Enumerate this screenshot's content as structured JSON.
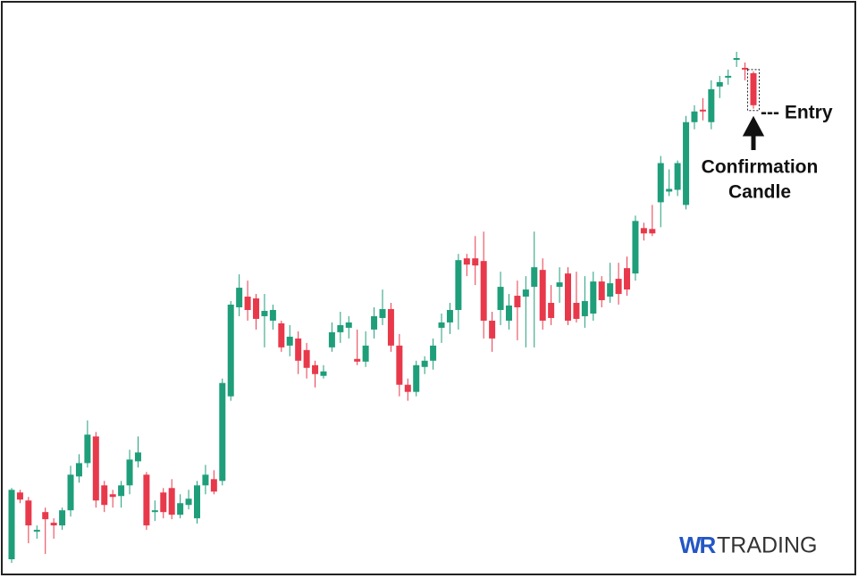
{
  "chart_data": {
    "type": "candlestick",
    "up_color": "#1f9e7a",
    "down_color": "#e8394b",
    "open": [
      22,
      97,
      88,
      53,
      75,
      63,
      60,
      77,
      115,
      130,
      160,
      105,
      95,
      93,
      105,
      132,
      117,
      75,
      97,
      102,
      72,
      83,
      68,
      105,
      112,
      110,
      205,
      305,
      317,
      315,
      295,
      290,
      287,
      262,
      270,
      257,
      240,
      228,
      260,
      277,
      282,
      247,
      244,
      280,
      293,
      303,
      262,
      218,
      210,
      238,
      245,
      282,
      288,
      302,
      360,
      360,
      357,
      290,
      302,
      290,
      318,
      317,
      328,
      347,
      310,
      328,
      343,
      310,
      295,
      298,
      334,
      317,
      337,
      349,
      343,
      394,
      393,
      423,
      435,
      437,
      420,
      513,
      527,
      513,
      553,
      563,
      583,
      574,
      568
    ],
    "high": [
      102,
      100,
      92,
      60,
      80,
      68,
      80,
      127,
      140,
      178,
      165,
      110,
      100,
      110,
      145,
      160,
      120,
      88,
      102,
      112,
      95,
      100,
      110,
      128,
      122,
      225,
      312,
      342,
      335,
      320,
      320,
      308,
      290,
      285,
      278,
      265,
      245,
      240,
      288,
      300,
      295,
      280,
      278,
      305,
      325,
      310,
      275,
      225,
      245,
      250,
      270,
      298,
      310,
      365,
      365,
      385,
      390,
      300,
      345,
      320,
      335,
      340,
      390,
      360,
      330,
      350,
      350,
      345,
      340,
      345,
      340,
      355,
      355,
      362,
      408,
      400,
      420,
      475,
      460,
      470,
      520,
      532,
      540,
      560,
      565,
      572,
      592,
      580,
      570
    ],
    "low": [
      18,
      85,
      40,
      45,
      28,
      45,
      55,
      70,
      108,
      125,
      80,
      75,
      80,
      80,
      95,
      125,
      55,
      65,
      68,
      67,
      68,
      78,
      62,
      95,
      95,
      105,
      200,
      295,
      290,
      280,
      260,
      280,
      255,
      250,
      230,
      225,
      215,
      225,
      255,
      265,
      270,
      240,
      238,
      270,
      285,
      255,
      205,
      200,
      205,
      230,
      235,
      265,
      275,
      280,
      340,
      330,
      270,
      255,
      285,
      280,
      268,
      260,
      260,
      280,
      285,
      310,
      285,
      288,
      282,
      290,
      305,
      310,
      308,
      318,
      335,
      380,
      385,
      395,
      430,
      430,
      415,
      505,
      515,
      505,
      540,
      555,
      575,
      560,
      528
    ],
    "close": [
      100,
      89,
      60,
      55,
      67,
      60,
      77,
      117,
      130,
      162,
      88,
      83,
      92,
      105,
      134,
      142,
      60,
      77,
      75,
      72,
      85,
      90,
      105,
      117,
      98,
      220,
      308,
      327,
      302,
      292,
      301,
      302,
      260,
      272,
      245,
      237,
      230,
      233,
      277,
      285,
      288,
      244,
      262,
      295,
      303,
      262,
      218,
      210,
      240,
      245,
      262,
      288,
      302,
      358,
      353,
      352,
      290,
      270,
      328,
      307,
      305,
      325,
      350,
      290,
      293,
      333,
      290,
      292,
      312,
      334,
      313,
      332,
      320,
      325,
      402,
      388,
      388,
      467,
      438,
      467,
      513,
      525,
      525,
      550,
      558,
      565,
      585,
      572,
      532
    ],
    "annotations": {
      "entry": "--- Entry",
      "confirmation": [
        "Confirmation",
        "Candle"
      ]
    },
    "logo": {
      "mark": "WR",
      "text": "TRADING"
    }
  }
}
